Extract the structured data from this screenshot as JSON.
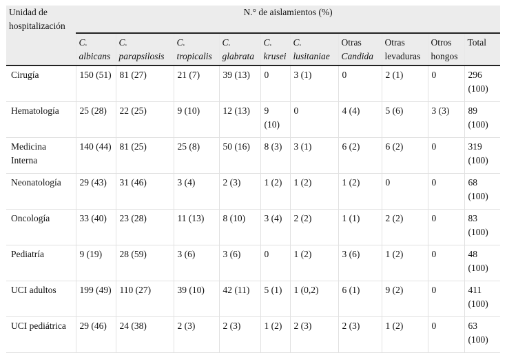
{
  "header": {
    "unit_label": "Unidad de hospitalización",
    "group_label": "N.° de aislamientos (%)",
    "columns": [
      {
        "line1": "C.",
        "line2": "albicans",
        "italic1": true,
        "italic2": true
      },
      {
        "line1": "C.",
        "line2": "parapsilosis",
        "italic1": true,
        "italic2": true
      },
      {
        "line1": "C.",
        "line2": "tropicalis",
        "italic1": true,
        "italic2": true
      },
      {
        "line1": "C.",
        "line2": "glabrata",
        "italic1": true,
        "italic2": true
      },
      {
        "line1": "C.",
        "line2": "krusei",
        "italic1": true,
        "italic2": true
      },
      {
        "line1": "C.",
        "line2": "lusitaniae",
        "italic1": true,
        "italic2": true
      },
      {
        "line1": "Otras",
        "line2": "Candida",
        "italic1": false,
        "italic2": true
      },
      {
        "line1": "Otras",
        "line2": "levaduras",
        "italic1": false,
        "italic2": false
      },
      {
        "line1": "Otros",
        "line2": "hongos",
        "italic1": false,
        "italic2": false
      },
      {
        "line1": "Total",
        "line2": "",
        "italic1": false,
        "italic2": false
      }
    ]
  },
  "rows": [
    {
      "unit": "Cirugía",
      "cells": [
        "150 (51)",
        "81 (27)",
        "21 (7)",
        "39 (13)",
        "0",
        "3 (1)",
        "0",
        "2 (1)",
        "0",
        "296 (100)"
      ]
    },
    {
      "unit": "Hematología",
      "cells": [
        "25 (28)",
        "22 (25)",
        "9 (10)",
        "12 (13)",
        "9 (10)",
        "0",
        "4 (4)",
        "5 (6)",
        "3 (3)",
        "89 (100)"
      ]
    },
    {
      "unit": "Medicina Interna",
      "cells": [
        "140 (44)",
        "81 (25)",
        "25 (8)",
        "50 (16)",
        "8 (3)",
        "3 (1)",
        "6 (2)",
        "6 (2)",
        "0",
        "319 (100)"
      ]
    },
    {
      "unit": "Neonatología",
      "cells": [
        "29 (43)",
        "31 (46)",
        "3 (4)",
        "2 (3)",
        "1 (2)",
        "1 (2)",
        "1 (2)",
        "0",
        "0",
        "68 (100)"
      ]
    },
    {
      "unit": "Oncología",
      "cells": [
        "33 (40)",
        "23 (28)",
        "11 (13)",
        "8 (10)",
        "3 (4)",
        "2 (2)",
        "1 (1)",
        "2 (2)",
        "0",
        "83 (100)"
      ]
    },
    {
      "unit": "Pediatría",
      "cells": [
        "9 (19)",
        "28 (59)",
        "3 (6)",
        "3 (6)",
        "0",
        "1 (2)",
        "3 (6)",
        "1 (2)",
        "0",
        "48 (100)"
      ]
    },
    {
      "unit": "UCI adultos",
      "cells": [
        "199 (49)",
        "110 (27)",
        "39 (10)",
        "42 (11)",
        "5 (1)",
        "1 (0,2)",
        "6 (1)",
        "9 (2)",
        "0",
        "411 (100)"
      ]
    },
    {
      "unit": "UCI pediátrica",
      "cells": [
        "29 (46)",
        "24 (38)",
        "2 (3)",
        "2 (3)",
        "1 (2)",
        "2 (3)",
        "2 (3)",
        "1 (2)",
        "0",
        "63 (100)"
      ]
    }
  ]
}
